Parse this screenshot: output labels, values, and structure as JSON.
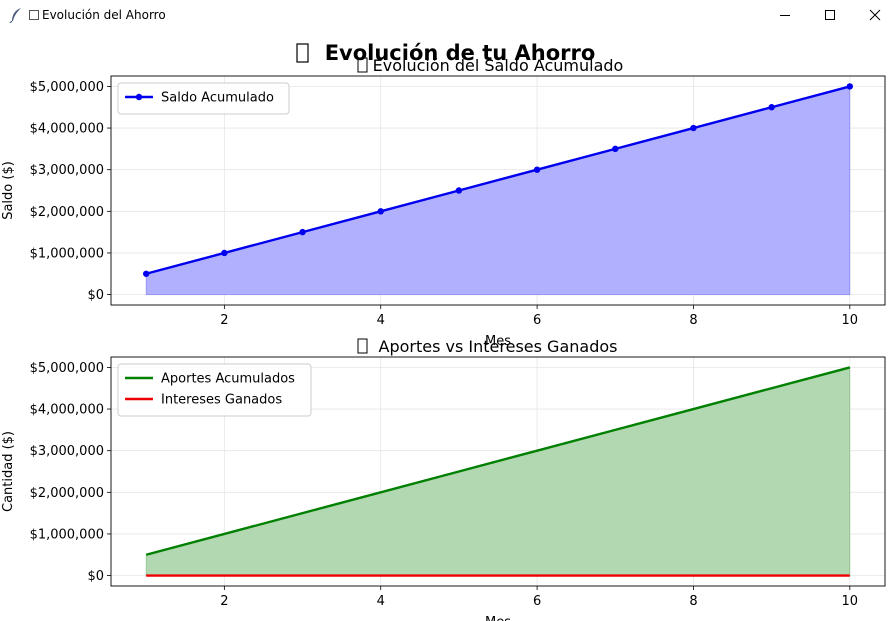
{
  "window": {
    "title": "Evolución del Ahorro",
    "icon": "feather-icon",
    "title_glyph": "chart-icon"
  },
  "figure": {
    "suptitle": "Evolución de tu Ahorro"
  },
  "chart_data": [
    {
      "type": "line",
      "title": "Evolución del Saldo Acumulado",
      "xlabel": "Mes",
      "ylabel": "Saldo ($)",
      "xlim": [
        0.55,
        10.45
      ],
      "ylim": [
        -250000,
        5250000
      ],
      "xticks": [
        2,
        4,
        6,
        8,
        10
      ],
      "yticks": [
        0,
        1000000,
        2000000,
        3000000,
        4000000,
        5000000
      ],
      "ytick_labels": [
        "$0",
        "$1,000,000",
        "$2,000,000",
        "$3,000,000",
        "$4,000,000",
        "$5,000,000"
      ],
      "grid": true,
      "legend": "top-left",
      "x": [
        1,
        2,
        3,
        4,
        5,
        6,
        7,
        8,
        9,
        10
      ],
      "series": [
        {
          "name": "Saldo Acumulado",
          "values": [
            500000,
            1000000,
            1500000,
            2000000,
            2500000,
            3000000,
            3500000,
            4000000,
            4500000,
            5000000
          ],
          "color": "#0000ee",
          "fill": "#b0b0ff",
          "markers": true
        }
      ]
    },
    {
      "type": "line",
      "title": "Aportes vs Intereses Ganados",
      "xlabel": "Mes",
      "ylabel": "Cantidad ($)",
      "xlim": [
        0.55,
        10.45
      ],
      "ylim": [
        -250000,
        5250000
      ],
      "xticks": [
        2,
        4,
        6,
        8,
        10
      ],
      "yticks": [
        0,
        1000000,
        2000000,
        3000000,
        4000000,
        5000000
      ],
      "ytick_labels": [
        "$0",
        "$1,000,000",
        "$2,000,000",
        "$3,000,000",
        "$4,000,000",
        "$5,000,000"
      ],
      "grid": true,
      "legend": "top-left",
      "x": [
        1,
        2,
        3,
        4,
        5,
        6,
        7,
        8,
        9,
        10
      ],
      "series": [
        {
          "name": "Aportes Acumulados",
          "values": [
            500000,
            1000000,
            1500000,
            2000000,
            2500000,
            3000000,
            3500000,
            4000000,
            4500000,
            5000000
          ],
          "color": "#008000",
          "fill": "#b2d8b2",
          "markers": false
        },
        {
          "name": "Intereses Ganados",
          "values": [
            0,
            0,
            0,
            0,
            0,
            0,
            0,
            0,
            0,
            0
          ],
          "color": "#ee0000",
          "fill": null,
          "markers": false
        }
      ]
    }
  ]
}
